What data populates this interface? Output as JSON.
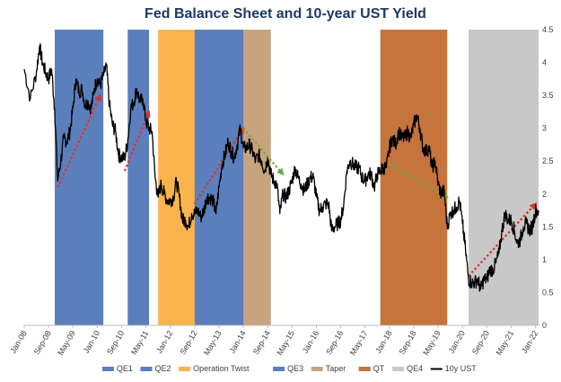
{
  "chart_data": {
    "type": "line",
    "title": "Fed Balance Sheet and 10-year UST Yield",
    "x_tick_labels": [
      "Jan-08",
      "Sep-08",
      "May-09",
      "Jan-10",
      "Sep-10",
      "May-11",
      "Jan-12",
      "Sep-12",
      "May-13",
      "Jan-14",
      "Sep-14",
      "May-15",
      "Jan-16",
      "Sep-16",
      "May-17",
      "Jan-18",
      "Sep-18",
      "May-19",
      "Jan-20",
      "Sep-20",
      "May-21",
      "Jan-22"
    ],
    "y_tick_labels": [
      "0",
      "0.5",
      "1",
      "1.5",
      "2",
      "2.5",
      "3",
      "3.5",
      "4",
      "4.5"
    ],
    "ylim": [
      0,
      4.5
    ],
    "y_axis_side": "right",
    "x_range": [
      "2008-01",
      "2022-02"
    ],
    "legend_position": "bottom",
    "bands": [
      {
        "name": "QE1",
        "start": "2008-11",
        "end": "2010-03",
        "color": "#5b7fbc"
      },
      {
        "name": "QE2",
        "start": "2010-11",
        "end": "2011-06",
        "color": "#5b7fbc"
      },
      {
        "name": "Operation Twist",
        "start": "2011-09",
        "end": "2012-12",
        "color": "#f9b44e"
      },
      {
        "name": "QE3",
        "start": "2012-09",
        "end": "2014-10",
        "color": "#5b7fbc"
      },
      {
        "name": "Taper",
        "start": "2014-01",
        "end": "2014-10",
        "color": "#c8a47e"
      },
      {
        "name": "QT",
        "start": "2017-10",
        "end": "2019-08",
        "color": "#c5743c"
      },
      {
        "name": "QE4",
        "start": "2020-03",
        "end": "2022-02",
        "color": "#c8c8c8"
      }
    ],
    "series": [
      {
        "name": "10y UST",
        "color": "#000000",
        "points": [
          [
            "2008-01",
            3.9
          ],
          [
            "2008-03",
            3.45
          ],
          [
            "2008-05",
            3.85
          ],
          [
            "2008-06",
            4.25
          ],
          [
            "2008-07",
            4.0
          ],
          [
            "2008-08",
            3.85
          ],
          [
            "2008-09",
            3.75
          ],
          [
            "2008-10",
            3.9
          ],
          [
            "2008-11",
            3.3
          ],
          [
            "2008-12",
            2.2
          ],
          [
            "2009-01",
            2.5
          ],
          [
            "2009-02",
            2.85
          ],
          [
            "2009-03",
            2.8
          ],
          [
            "2009-04",
            2.95
          ],
          [
            "2009-05",
            3.3
          ],
          [
            "2009-06",
            3.75
          ],
          [
            "2009-07",
            3.55
          ],
          [
            "2009-08",
            3.6
          ],
          [
            "2009-09",
            3.35
          ],
          [
            "2009-10",
            3.4
          ],
          [
            "2009-11",
            3.3
          ],
          [
            "2009-12",
            3.6
          ],
          [
            "2010-01",
            3.75
          ],
          [
            "2010-02",
            3.65
          ],
          [
            "2010-03",
            3.8
          ],
          [
            "2010-04",
            3.95
          ],
          [
            "2010-05",
            3.35
          ],
          [
            "2010-06",
            3.05
          ],
          [
            "2010-07",
            2.95
          ],
          [
            "2010-08",
            2.6
          ],
          [
            "2010-09",
            2.55
          ],
          [
            "2010-10",
            2.55
          ],
          [
            "2010-11",
            2.8
          ],
          [
            "2010-12",
            3.3
          ],
          [
            "2011-01",
            3.4
          ],
          [
            "2011-02",
            3.6
          ],
          [
            "2011-03",
            3.4
          ],
          [
            "2011-04",
            3.45
          ],
          [
            "2011-05",
            3.1
          ],
          [
            "2011-06",
            3.0
          ],
          [
            "2011-07",
            2.95
          ],
          [
            "2011-08",
            2.25
          ],
          [
            "2011-09",
            1.95
          ],
          [
            "2011-10",
            2.15
          ],
          [
            "2011-11",
            2.0
          ],
          [
            "2011-12",
            1.9
          ],
          [
            "2012-01",
            1.9
          ],
          [
            "2012-02",
            1.95
          ],
          [
            "2012-03",
            2.2
          ],
          [
            "2012-04",
            1.95
          ],
          [
            "2012-05",
            1.6
          ],
          [
            "2012-06",
            1.6
          ],
          [
            "2012-07",
            1.5
          ],
          [
            "2012-08",
            1.7
          ],
          [
            "2012-09",
            1.7
          ],
          [
            "2012-10",
            1.75
          ],
          [
            "2012-11",
            1.65
          ],
          [
            "2012-12",
            1.75
          ],
          [
            "2013-01",
            1.95
          ],
          [
            "2013-02",
            1.95
          ],
          [
            "2013-03",
            1.9
          ],
          [
            "2013-04",
            1.7
          ],
          [
            "2013-05",
            2.1
          ],
          [
            "2013-06",
            2.45
          ],
          [
            "2013-07",
            2.6
          ],
          [
            "2013-08",
            2.8
          ],
          [
            "2013-09",
            2.65
          ],
          [
            "2013-10",
            2.55
          ],
          [
            "2013-11",
            2.75
          ],
          [
            "2013-12",
            3.0
          ],
          [
            "2014-01",
            2.7
          ],
          [
            "2014-02",
            2.7
          ],
          [
            "2014-03",
            2.75
          ],
          [
            "2014-04",
            2.65
          ],
          [
            "2014-05",
            2.5
          ],
          [
            "2014-06",
            2.6
          ],
          [
            "2014-07",
            2.5
          ],
          [
            "2014-08",
            2.35
          ],
          [
            "2014-09",
            2.55
          ],
          [
            "2014-10",
            2.3
          ],
          [
            "2014-11",
            2.2
          ],
          [
            "2014-12",
            2.15
          ],
          [
            "2015-01",
            1.7
          ],
          [
            "2015-02",
            2.0
          ],
          [
            "2015-03",
            1.95
          ],
          [
            "2015-04",
            2.05
          ],
          [
            "2015-05",
            2.2
          ],
          [
            "2015-06",
            2.4
          ],
          [
            "2015-07",
            2.25
          ],
          [
            "2015-08",
            2.15
          ],
          [
            "2015-09",
            2.05
          ],
          [
            "2015-10",
            2.15
          ],
          [
            "2015-11",
            2.25
          ],
          [
            "2015-12",
            2.25
          ],
          [
            "2016-01",
            1.95
          ],
          [
            "2016-02",
            1.75
          ],
          [
            "2016-03",
            1.8
          ],
          [
            "2016-04",
            1.85
          ],
          [
            "2016-05",
            1.85
          ],
          [
            "2016-06",
            1.45
          ],
          [
            "2016-07",
            1.5
          ],
          [
            "2016-08",
            1.55
          ],
          [
            "2016-09",
            1.6
          ],
          [
            "2016-10",
            1.85
          ],
          [
            "2016-11",
            2.35
          ],
          [
            "2016-12",
            2.5
          ],
          [
            "2017-01",
            2.45
          ],
          [
            "2017-02",
            2.4
          ],
          [
            "2017-03",
            2.4
          ],
          [
            "2017-04",
            2.25
          ],
          [
            "2017-05",
            2.2
          ],
          [
            "2017-06",
            2.3
          ],
          [
            "2017-07",
            2.3
          ],
          [
            "2017-08",
            2.1
          ],
          [
            "2017-09",
            2.3
          ],
          [
            "2017-10",
            2.35
          ],
          [
            "2017-11",
            2.4
          ],
          [
            "2017-12",
            2.4
          ],
          [
            "2018-01",
            2.7
          ],
          [
            "2018-02",
            2.85
          ],
          [
            "2018-03",
            2.75
          ],
          [
            "2018-04",
            2.95
          ],
          [
            "2018-05",
            2.85
          ],
          [
            "2018-06",
            2.85
          ],
          [
            "2018-07",
            2.95
          ],
          [
            "2018-08",
            2.85
          ],
          [
            "2018-09",
            3.05
          ],
          [
            "2018-10",
            3.2
          ],
          [
            "2018-11",
            3.0
          ],
          [
            "2018-12",
            2.7
          ],
          [
            "2019-01",
            2.65
          ],
          [
            "2019-02",
            2.7
          ],
          [
            "2019-03",
            2.4
          ],
          [
            "2019-04",
            2.5
          ],
          [
            "2019-05",
            2.15
          ],
          [
            "2019-06",
            2.0
          ],
          [
            "2019-07",
            2.05
          ],
          [
            "2019-08",
            1.5
          ],
          [
            "2019-09",
            1.7
          ],
          [
            "2019-10",
            1.75
          ],
          [
            "2019-11",
            1.8
          ],
          [
            "2019-12",
            1.9
          ],
          [
            "2020-01",
            1.55
          ],
          [
            "2020-02",
            1.15
          ],
          [
            "2020-03",
            0.7
          ],
          [
            "2020-04",
            0.65
          ],
          [
            "2020-05",
            0.65
          ],
          [
            "2020-06",
            0.7
          ],
          [
            "2020-07",
            0.55
          ],
          [
            "2020-08",
            0.7
          ],
          [
            "2020-09",
            0.7
          ],
          [
            "2020-10",
            0.85
          ],
          [
            "2020-11",
            0.85
          ],
          [
            "2020-12",
            0.95
          ],
          [
            "2021-01",
            1.1
          ],
          [
            "2021-02",
            1.45
          ],
          [
            "2021-03",
            1.7
          ],
          [
            "2021-04",
            1.6
          ],
          [
            "2021-05",
            1.6
          ],
          [
            "2021-06",
            1.45
          ],
          [
            "2021-07",
            1.25
          ],
          [
            "2021-08",
            1.3
          ],
          [
            "2021-09",
            1.5
          ],
          [
            "2021-10",
            1.55
          ],
          [
            "2021-11",
            1.45
          ],
          [
            "2021-12",
            1.5
          ],
          [
            "2022-01",
            1.75
          ],
          [
            "2022-02",
            1.75
          ]
        ]
      }
    ],
    "annotations": [
      {
        "type": "arrow",
        "color": "#d9342b",
        "style": "dotted",
        "from": [
          "2008-12",
          2.1
        ],
        "to": [
          "2010-02",
          3.5
        ]
      },
      {
        "type": "arrow",
        "color": "#d9342b",
        "style": "dotted",
        "from": [
          "2010-10",
          2.35
        ],
        "to": [
          "2011-06",
          3.25
        ]
      },
      {
        "type": "arrow",
        "color": "#d9342b",
        "style": "dotted",
        "from": [
          "2012-09",
          1.85
        ],
        "to": [
          "2014-01",
          3.0
        ]
      },
      {
        "type": "arrow",
        "color": "#6aaa46",
        "style": "dotted",
        "from": [
          "2014-01",
          3.0
        ],
        "to": [
          "2015-02",
          2.3
        ]
      },
      {
        "type": "arrow",
        "color": "#6aaa46",
        "style": "dotted",
        "from": [
          "2018-01",
          2.45
        ],
        "to": [
          "2019-08",
          1.95
        ]
      },
      {
        "type": "arrow",
        "color": "#d9342b",
        "style": "dotted",
        "from": [
          "2020-03",
          0.75
        ],
        "to": [
          "2022-01",
          1.85
        ]
      }
    ]
  }
}
